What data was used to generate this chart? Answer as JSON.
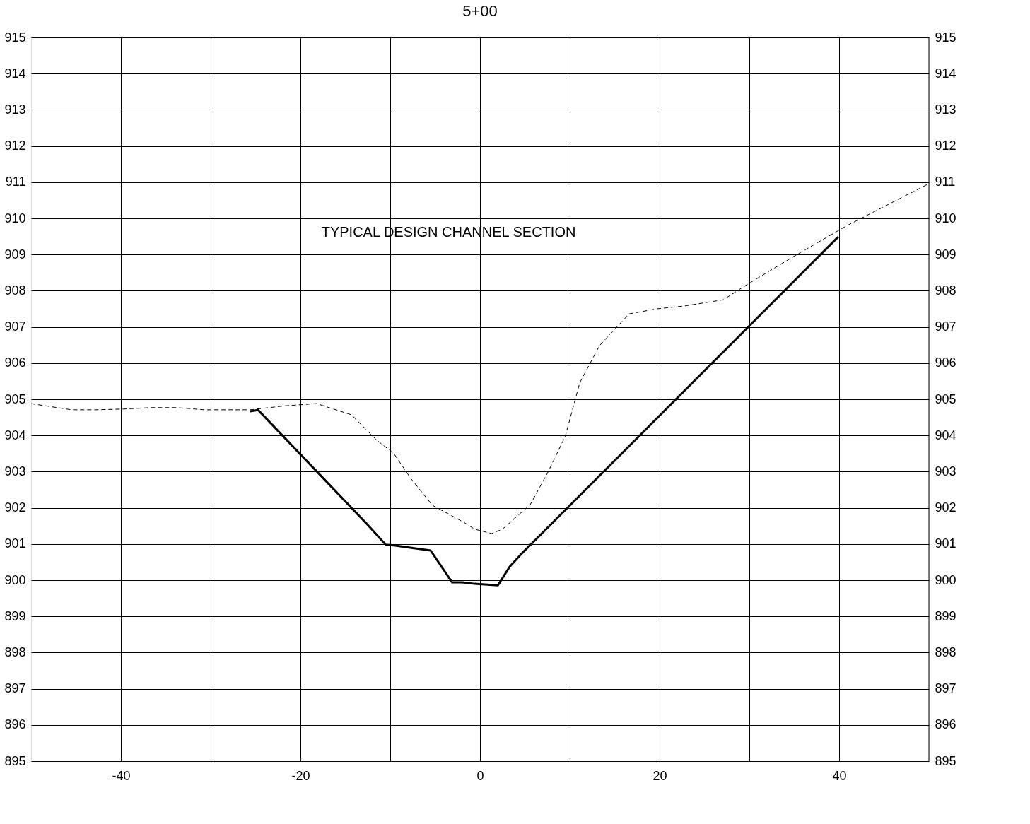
{
  "chart_data": {
    "type": "line",
    "title": "5+00",
    "series": [
      {
        "color": "#000000",
        "line_style": "solid",
        "x": [
          -25.6,
          -24.7,
          -12.7,
          -10.5,
          -9.6,
          -5.5,
          -3.1,
          -2.0,
          -0.6,
          2.0,
          3.3,
          4.5,
          39.9
        ],
        "values": [
          904.67,
          904.7,
          901.58,
          900.98,
          900.96,
          900.82,
          899.94,
          899.94,
          899.9,
          899.86,
          900.37,
          900.7,
          909.49
        ]
      },
      {
        "color": "#000000",
        "line_style": "dashed",
        "x": [
          -50,
          -45.5,
          -42.8,
          -39.7,
          -36.6,
          -33.8,
          -30.7,
          -25.6,
          -21.7,
          -18.2,
          -14.3,
          -11.6,
          -9.6,
          -7.7,
          -5.3,
          -1.8,
          -0.6,
          1.3,
          2.5,
          5.6,
          7.6,
          9.5,
          11.1,
          13.3,
          16.6,
          19.7,
          22.8,
          27.1,
          29.8,
          35.3,
          40.8,
          50
        ],
        "values": [
          904.88,
          904.71,
          904.71,
          904.73,
          904.77,
          904.77,
          904.71,
          904.71,
          904.82,
          904.88,
          904.57,
          903.89,
          903.5,
          902.81,
          902.07,
          901.6,
          901.41,
          901.29,
          901.41,
          902.09,
          903.0,
          903.98,
          905.45,
          906.48,
          907.36,
          907.5,
          907.58,
          907.75,
          908.18,
          909.0,
          909.79,
          910.96
        ]
      }
    ],
    "annotations": [
      "TYPICAL DESIGN CHANNEL SECTION"
    ],
    "xlim": [
      -50,
      50
    ],
    "xticks": [
      -40,
      {
        "value": -30,
        "label": null
      },
      -20,
      {
        "value": -10,
        "label": null
      },
      0,
      {
        "value": 10,
        "label": null
      },
      20,
      {
        "value": 30,
        "label": null
      },
      40
    ],
    "ylim": [
      895,
      915
    ],
    "yticks": [
      895,
      896,
      897,
      898,
      899,
      900,
      901,
      902,
      903,
      904,
      905,
      906,
      907,
      908,
      909,
      910,
      911,
      912,
      913,
      914,
      915
    ],
    "y2lim": [
      895,
      915
    ],
    "y2ticks": [
      895,
      896,
      897,
      898,
      899,
      900,
      901,
      902,
      903,
      904,
      905,
      906,
      907,
      908,
      909,
      910,
      911,
      912,
      913,
      914,
      915
    ],
    "grid": true,
    "marker": "none"
  }
}
